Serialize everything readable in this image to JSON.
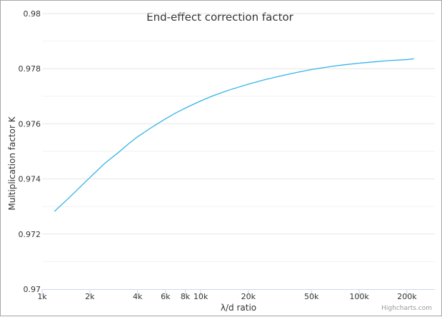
{
  "chart_data": {
    "type": "line",
    "title": "End-effect correction factor",
    "xlabel": "λ/d ratio",
    "ylabel": "Multiplication factor K",
    "x_scale": "log",
    "xlim": [
      1000,
      300000
    ],
    "ylim": [
      0.97,
      0.98
    ],
    "x_ticks": [
      {
        "value": 1000,
        "label": "1k"
      },
      {
        "value": 2000,
        "label": "2k"
      },
      {
        "value": 4000,
        "label": "4k"
      },
      {
        "value": 6000,
        "label": "6k"
      },
      {
        "value": 8000,
        "label": "8k"
      },
      {
        "value": 10000,
        "label": "10k"
      },
      {
        "value": 20000,
        "label": "20k"
      },
      {
        "value": 50000,
        "label": "50k"
      },
      {
        "value": 100000,
        "label": "100k"
      },
      {
        "value": 200000,
        "label": "200k"
      }
    ],
    "y_ticks": [
      {
        "value": 0.97,
        "label": "0.97"
      },
      {
        "value": 0.972,
        "label": "0.972"
      },
      {
        "value": 0.974,
        "label": "0.974"
      },
      {
        "value": 0.976,
        "label": "0.976"
      },
      {
        "value": 0.978,
        "label": "0.978"
      },
      {
        "value": 0.98,
        "label": "0.98"
      }
    ],
    "grid": true,
    "legend": "none",
    "series": [
      {
        "color": "#33b4e9",
        "points": [
          [
            1200,
            0.97283
          ],
          [
            1500,
            0.97335
          ],
          [
            2000,
            0.97405
          ],
          [
            2500,
            0.97458
          ],
          [
            3000,
            0.97494
          ],
          [
            3500,
            0.97527
          ],
          [
            4000,
            0.97553
          ],
          [
            5000,
            0.9759
          ],
          [
            6000,
            0.97618
          ],
          [
            7000,
            0.9764
          ],
          [
            8000,
            0.97657
          ],
          [
            10000,
            0.97683
          ],
          [
            12000,
            0.97702
          ],
          [
            15000,
            0.97722
          ],
          [
            20000,
            0.97744
          ],
          [
            25000,
            0.97759
          ],
          [
            30000,
            0.9777
          ],
          [
            40000,
            0.97786
          ],
          [
            50000,
            0.97797
          ],
          [
            60000,
            0.97804
          ],
          [
            70000,
            0.9781
          ],
          [
            80000,
            0.97814
          ],
          [
            100000,
            0.9782
          ],
          [
            120000,
            0.97824
          ],
          [
            150000,
            0.97829
          ],
          [
            200000,
            0.97833
          ],
          [
            220000,
            0.97836
          ]
        ]
      }
    ]
  },
  "credits": "Highcharts.com"
}
